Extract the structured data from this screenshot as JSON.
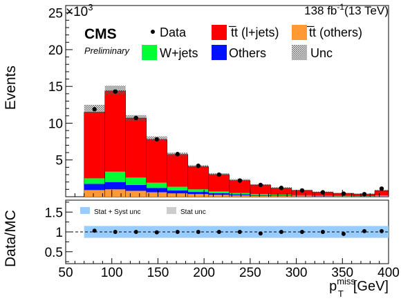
{
  "chart_data": {
    "type": "bar",
    "stacked": true,
    "top": {
      "ylabel": "Events",
      "y_multiplier": "×10",
      "y_multiplier_exp": "3",
      "ylim": [
        0,
        26
      ],
      "yticks": [
        5,
        10,
        15,
        20,
        25
      ],
      "lumi": "138 fb",
      "lumi_exp": "-1",
      "lumi_energy": "(13 TeV)",
      "experiment": "CMS",
      "status": "Preliminary",
      "bins": [
        {
          "lo": 70,
          "hi": 92.5,
          "others_tt": 0.9,
          "others": 0.85,
          "wjets": 0.75,
          "ttl": 9.0,
          "unc_hi": 12.5,
          "unc_lo": 11.4,
          "data": 11.9
        },
        {
          "lo": 92.5,
          "hi": 115,
          "others_tt": 1.0,
          "others": 1.0,
          "wjets": 1.4,
          "ttl": 11.0,
          "unc_hi": 15.1,
          "unc_lo": 13.9,
          "data": 14.3
        },
        {
          "lo": 115,
          "hi": 137.5,
          "others_tt": 0.8,
          "others": 0.8,
          "wjets": 1.0,
          "ttl": 8.1,
          "unc_hi": 11.1,
          "unc_lo": 10.3,
          "data": 10.7
        },
        {
          "lo": 137.5,
          "hi": 160,
          "others_tt": 0.6,
          "others": 0.6,
          "wjets": 0.7,
          "ttl": 5.9,
          "unc_hi": 8.2,
          "unc_lo": 7.6,
          "data": 7.8
        },
        {
          "lo": 160,
          "hi": 182.5,
          "others_tt": 0.45,
          "others": 0.4,
          "wjets": 0.5,
          "ttl": 4.4,
          "unc_hi": 6.0,
          "unc_lo": 5.5,
          "data": 5.8
        },
        {
          "lo": 182.5,
          "hi": 205,
          "others_tt": 0.35,
          "others": 0.3,
          "wjets": 0.35,
          "ttl": 3.1,
          "unc_hi": 4.3,
          "unc_lo": 4.0,
          "data": 4.2
        },
        {
          "lo": 205,
          "hi": 227.5,
          "others_tt": 0.25,
          "others": 0.22,
          "wjets": 0.25,
          "ttl": 2.3,
          "unc_hi": 3.2,
          "unc_lo": 2.9,
          "data": 3.0
        },
        {
          "lo": 227.5,
          "hi": 250,
          "others_tt": 0.17,
          "others": 0.15,
          "wjets": 0.18,
          "ttl": 1.7,
          "unc_hi": 2.4,
          "unc_lo": 2.2,
          "data": 2.2
        },
        {
          "lo": 250,
          "hi": 272.5,
          "others_tt": 0.12,
          "others": 0.1,
          "wjets": 0.13,
          "ttl": 1.25,
          "unc_hi": 1.7,
          "unc_lo": 1.5,
          "data": 1.6
        },
        {
          "lo": 272.5,
          "hi": 295,
          "others_tt": 0.09,
          "others": 0.08,
          "wjets": 0.1,
          "ttl": 0.9,
          "unc_hi": 1.3,
          "unc_lo": 1.1,
          "data": 1.2
        },
        {
          "lo": 295,
          "hi": 317.5,
          "others_tt": 0.07,
          "others": 0.06,
          "wjets": 0.07,
          "ttl": 0.65,
          "unc_hi": 0.95,
          "unc_lo": 0.8,
          "data": 0.85
        },
        {
          "lo": 317.5,
          "hi": 340,
          "others_tt": 0.05,
          "others": 0.04,
          "wjets": 0.05,
          "ttl": 0.48,
          "unc_hi": 0.7,
          "unc_lo": 0.58,
          "data": 0.6
        },
        {
          "lo": 340,
          "hi": 362.5,
          "others_tt": 0.04,
          "others": 0.03,
          "wjets": 0.04,
          "ttl": 0.35,
          "unc_hi": 0.52,
          "unc_lo": 0.42,
          "data": 0.42
        },
        {
          "lo": 362.5,
          "hi": 385,
          "others_tt": 0.03,
          "others": 0.03,
          "wjets": 0.03,
          "ttl": 0.28,
          "unc_hi": 0.42,
          "unc_lo": 0.33,
          "data": 0.35
        },
        {
          "lo": 385,
          "hi": 400,
          "others_tt": 0.06,
          "others": 0.05,
          "wjets": 0.06,
          "ttl": 0.65,
          "unc_hi": 0.95,
          "unc_lo": 0.8,
          "data": 1.1
        }
      ],
      "legend": [
        {
          "key": "data",
          "label": "Data"
        },
        {
          "key": "ttl",
          "label": "t̅t (l+jets)"
        },
        {
          "key": "others_tt",
          "label": "t̅t (others)"
        },
        {
          "key": "wjets",
          "label": "W+jets"
        },
        {
          "key": "others",
          "label": "Others"
        },
        {
          "key": "unc",
          "label": "Unc"
        }
      ],
      "legend_placement": "top"
    },
    "ratio": {
      "ylabel": "Data/MC",
      "ylim": [
        0.2,
        1.8
      ],
      "yticks": [
        "0.5",
        "1",
        "1.5"
      ],
      "ratio_values": [
        1.03,
        1.0,
        1.0,
        0.99,
        1.0,
        1.0,
        1.0,
        1.0,
        0.96,
        1.0,
        1.0,
        1.0,
        0.95,
        1.02,
        1.02
      ],
      "band_half_width": 0.15,
      "legend": [
        {
          "key": "stat_syst",
          "label": "Stat + Syst unc"
        },
        {
          "key": "stat",
          "label": "Stat unc"
        }
      ]
    },
    "x": {
      "xlim": [
        50,
        400
      ],
      "ticks": [
        50,
        100,
        150,
        200,
        250,
        300,
        350,
        400
      ],
      "xlabel_main": "p",
      "xlabel_sup": "miss",
      "xlabel_sub": "T",
      "xlabel_unit": "[GeV]"
    },
    "colors": {
      "ttl": "#ff0000",
      "others_tt": "#ff9933",
      "wjets": "#00ff33",
      "others": "#0011ff",
      "ratio_band": "#99ccff",
      "stat_band": "#cccccc",
      "data": "#000000"
    }
  }
}
